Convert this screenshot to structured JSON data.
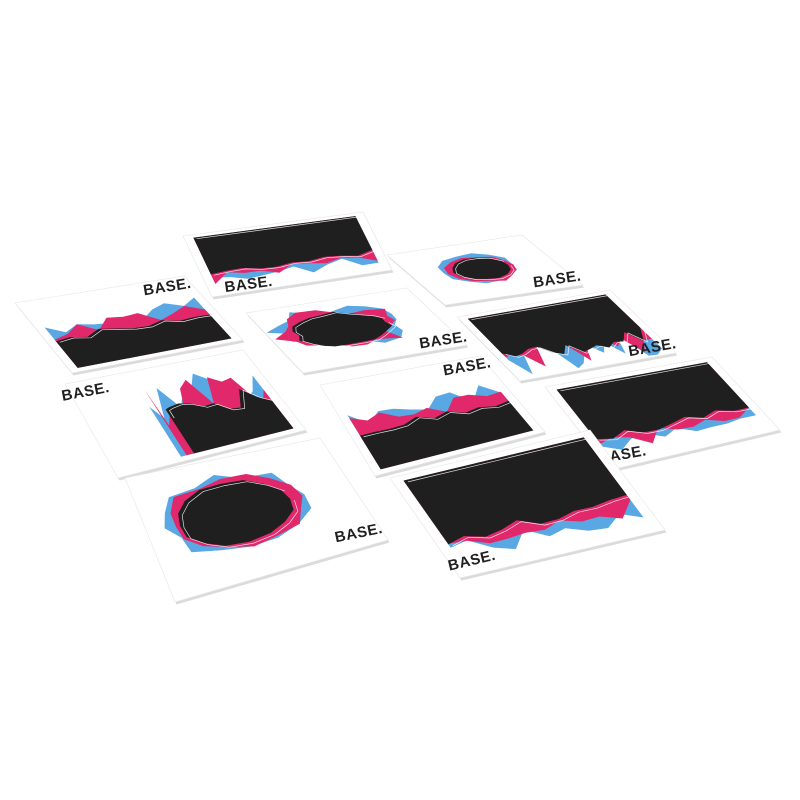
{
  "scene": {
    "background": "#ffffff",
    "card_fill": "#ffffff",
    "card_shadow": "#bdbdbd",
    "ink": "#1f1f1f",
    "blue": "#5aa8e3",
    "pink": "#e0286b",
    "line": "#ffffff"
  },
  "cards": [
    {
      "name": "card-top-center",
      "brand": "BASE.",
      "motif": "top-band",
      "jag": "soft"
    },
    {
      "name": "card-top-right",
      "brand": "BASE.",
      "motif": "small-blob",
      "jag": "soft"
    },
    {
      "name": "card-left",
      "brand": "BASE.",
      "motif": "bottom-band",
      "jag": "soft"
    },
    {
      "name": "card-middle",
      "brand": "BASE.",
      "motif": "blob",
      "jag": "spiky"
    },
    {
      "name": "card-right",
      "brand": "BASE.",
      "motif": "top-band",
      "jag": "spiky"
    },
    {
      "name": "card-left-lower",
      "brand": "BASE.",
      "motif": "bottom-right-mass",
      "jag": "spiky"
    },
    {
      "name": "card-center-lower",
      "brand": "BASE.",
      "motif": "bottom-band",
      "jag": "soft"
    },
    {
      "name": "card-right-lower",
      "brand": "BASE.",
      "motif": "top-band",
      "jag": "soft"
    },
    {
      "name": "card-bottom-left",
      "brand": "BASE.",
      "motif": "blob",
      "jag": "soft"
    },
    {
      "name": "card-bottom-center",
      "brand": "BASE.",
      "motif": "top-band",
      "jag": "soft"
    }
  ]
}
